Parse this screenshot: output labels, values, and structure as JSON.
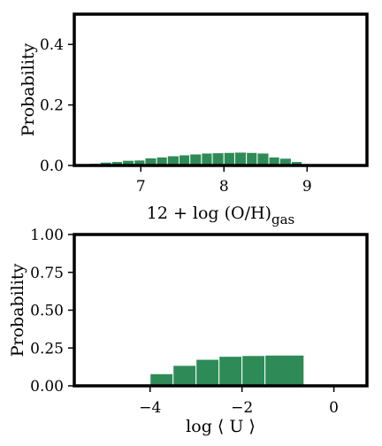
{
  "chart_data": [
    {
      "type": "bar",
      "title": "",
      "xlabel": "12 + log (O/H)",
      "xlabel_sub": "gas",
      "ylabel": "Probability",
      "xlim": [
        6.2,
        9.72
      ],
      "ylim": [
        0,
        0.5
      ],
      "xticks": [
        7,
        8,
        9
      ],
      "yticks": [
        0.0,
        0.2,
        0.4
      ],
      "ytick_labels": [
        "0.0",
        "0.2",
        "0.4"
      ],
      "bar_color": "#2e8b57",
      "grid": false,
      "bins": [
        {
          "x0": 6.38,
          "x1": 6.51,
          "value": 0.007
        },
        {
          "x0": 6.51,
          "x1": 6.65,
          "value": 0.011
        },
        {
          "x0": 6.65,
          "x1": 6.78,
          "value": 0.013
        },
        {
          "x0": 6.78,
          "x1": 6.92,
          "value": 0.017
        },
        {
          "x0": 6.92,
          "x1": 7.05,
          "value": 0.018
        },
        {
          "x0": 7.05,
          "x1": 7.19,
          "value": 0.025
        },
        {
          "x0": 7.19,
          "x1": 7.32,
          "value": 0.028
        },
        {
          "x0": 7.32,
          "x1": 7.46,
          "value": 0.032
        },
        {
          "x0": 7.46,
          "x1": 7.59,
          "value": 0.035
        },
        {
          "x0": 7.59,
          "x1": 7.73,
          "value": 0.038
        },
        {
          "x0": 7.73,
          "x1": 7.86,
          "value": 0.041
        },
        {
          "x0": 7.86,
          "x1": 8.0,
          "value": 0.042
        },
        {
          "x0": 8.0,
          "x1": 8.13,
          "value": 0.043
        },
        {
          "x0": 8.13,
          "x1": 8.27,
          "value": 0.044
        },
        {
          "x0": 8.27,
          "x1": 8.4,
          "value": 0.043
        },
        {
          "x0": 8.4,
          "x1": 8.54,
          "value": 0.041
        },
        {
          "x0": 8.54,
          "x1": 8.67,
          "value": 0.028
        },
        {
          "x0": 8.67,
          "x1": 8.81,
          "value": 0.024
        },
        {
          "x0": 8.81,
          "x1": 8.94,
          "value": 0.013
        },
        {
          "x0": 8.94,
          "x1": 9.08,
          "value": 0.002
        }
      ]
    },
    {
      "type": "bar",
      "title": "",
      "xlabel": "log ⟨ U ⟩",
      "ylabel": "Probability",
      "xlim": [
        -5.65,
        0.72
      ],
      "ylim": [
        0,
        1.0
      ],
      "xticks": [
        -4,
        -2,
        0
      ],
      "xtick_labels": [
        "−4",
        "−2",
        "0"
      ],
      "yticks": [
        0.0,
        0.25,
        0.5,
        0.75,
        1.0
      ],
      "ytick_labels": [
        "0.00",
        "0.25",
        "0.50",
        "0.75",
        "1.00"
      ],
      "bar_color": "#2e8b57",
      "grid": false,
      "bins": [
        {
          "x0": -4.45,
          "x1": -4.0,
          "value": 0.005
        },
        {
          "x0": -4.0,
          "x1": -3.5,
          "value": 0.08
        },
        {
          "x0": -3.5,
          "x1": -3.0,
          "value": 0.135
        },
        {
          "x0": -3.0,
          "x1": -2.5,
          "value": 0.175
        },
        {
          "x0": -2.5,
          "x1": -2.0,
          "value": 0.195
        },
        {
          "x0": -2.0,
          "x1": -1.5,
          "value": 0.2
        },
        {
          "x0": -1.5,
          "x1": -0.65,
          "value": 0.203
        }
      ]
    }
  ]
}
